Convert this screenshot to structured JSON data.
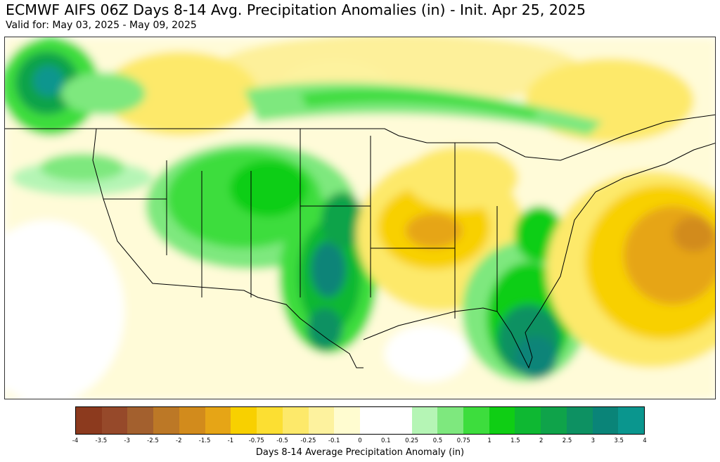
{
  "title": "ECMWF AIFS 06Z Days 8-14 Avg. Precipitation Anomalies (in) - Init. Apr 25, 2025",
  "subtitle": "Valid for: May 03, 2025 - May 09, 2025",
  "colorbar": {
    "label": "Days 8-14 Average Precipitation Anomaly (in)",
    "ticks": [
      "-4",
      "-3.5",
      "-3",
      "-2.5",
      "-2",
      "-1.5",
      "-1",
      "-0.75",
      "-0.5",
      "-0.25",
      "-0.1",
      "0",
      "0.1",
      "0.25",
      "0.5",
      "0.75",
      "1",
      "1.5",
      "2",
      "2.5",
      "3",
      "3.5",
      "4"
    ],
    "colors": [
      "#8c3a1e",
      "#96492a",
      "#a3602e",
      "#bc7826",
      "#d28b1c",
      "#e6a516",
      "#f8d000",
      "#fcdf32",
      "#fde96a",
      "#fdf29e",
      "#fffcd0",
      "#ffffff",
      "#ffffff",
      "#b5f5b5",
      "#7ee87e",
      "#3ddd3d",
      "#0fce14",
      "#0eb832",
      "#0fa34a",
      "#0d9162",
      "#0a8478",
      "#0a968e",
      "#0aa8b4"
    ]
  }
}
